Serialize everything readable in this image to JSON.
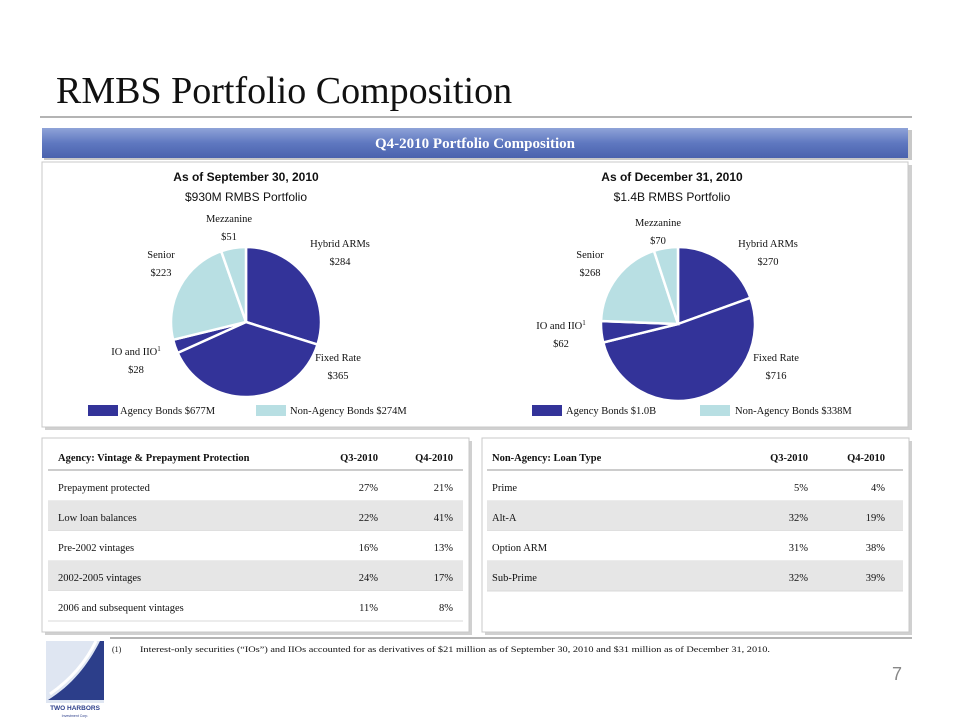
{
  "title": "RMBS Portfolio Composition",
  "banner": "Q4-2010 Portfolio Composition",
  "chart_data": [
    {
      "type": "pie",
      "title": "As of September 30, 2010",
      "subtitle": "$930M RMBS Portfolio",
      "categories": [
        "Hybrid ARMs",
        "Fixed Rate",
        "IO and IIO",
        "Senior",
        "Mezzanine"
      ],
      "values": [
        284,
        365,
        28,
        223,
        51
      ],
      "value_labels": [
        "$284",
        "$365",
        "$28",
        "$223",
        "$51"
      ],
      "colors": [
        "#333399",
        "#333399",
        "#333399",
        "#b8dfe3",
        "#b8dfe3"
      ],
      "note_marker": "1",
      "legend": [
        {
          "name": "Agency Bonds $677M",
          "color": "#333399"
        },
        {
          "name": "Non-Agency Bonds $274M",
          "color": "#b8dfe3"
        }
      ]
    },
    {
      "type": "pie",
      "title": "As of December 31, 2010",
      "subtitle": "$1.4B RMBS Portfolio",
      "categories": [
        "Hybrid ARMs",
        "Fixed Rate",
        "IO and IIO",
        "Senior",
        "Mezzanine"
      ],
      "values": [
        270,
        716,
        62,
        268,
        70
      ],
      "value_labels": [
        "$270",
        "$716",
        "$62",
        "$268",
        "$70"
      ],
      "colors": [
        "#333399",
        "#333399",
        "#333399",
        "#b8dfe3",
        "#b8dfe3"
      ],
      "note_marker": "1",
      "legend": [
        {
          "name": "Agency Bonds $1.0B",
          "color": "#333399"
        },
        {
          "name": "Non-Agency Bonds $338M",
          "color": "#b8dfe3"
        }
      ]
    }
  ],
  "tables": [
    {
      "header": [
        "Agency: Vintage & Prepayment Protection",
        "Q3-2010",
        "Q4-2010"
      ],
      "rows": [
        [
          "Prepayment protected",
          "27%",
          "21%"
        ],
        [
          "Low loan balances",
          "22%",
          "41%"
        ],
        [
          "Pre-2002 vintages",
          "16%",
          "13%"
        ],
        [
          "2002-2005 vintages",
          "24%",
          "17%"
        ],
        [
          "2006 and subsequent vintages",
          "11%",
          "8%"
        ]
      ]
    },
    {
      "header": [
        "Non-Agency: Loan Type",
        "Q3-2010",
        "Q4-2010"
      ],
      "rows": [
        [
          "Prime",
          "5%",
          "4%"
        ],
        [
          "Alt-A",
          "32%",
          "19%"
        ],
        [
          "Option ARM",
          "31%",
          "38%"
        ],
        [
          "Sub-Prime",
          "32%",
          "39%"
        ]
      ]
    }
  ],
  "footnote": {
    "marker": "(1)",
    "text": "Interest-only securities (“IOs”) and IIOs accounted for as derivatives of $21 million as of September 30, 2010 and $31 million as of December 31, 2010."
  },
  "page_number": "7",
  "logo": {
    "name": "TWO HARBORS",
    "tagline": "Investment Corp."
  }
}
